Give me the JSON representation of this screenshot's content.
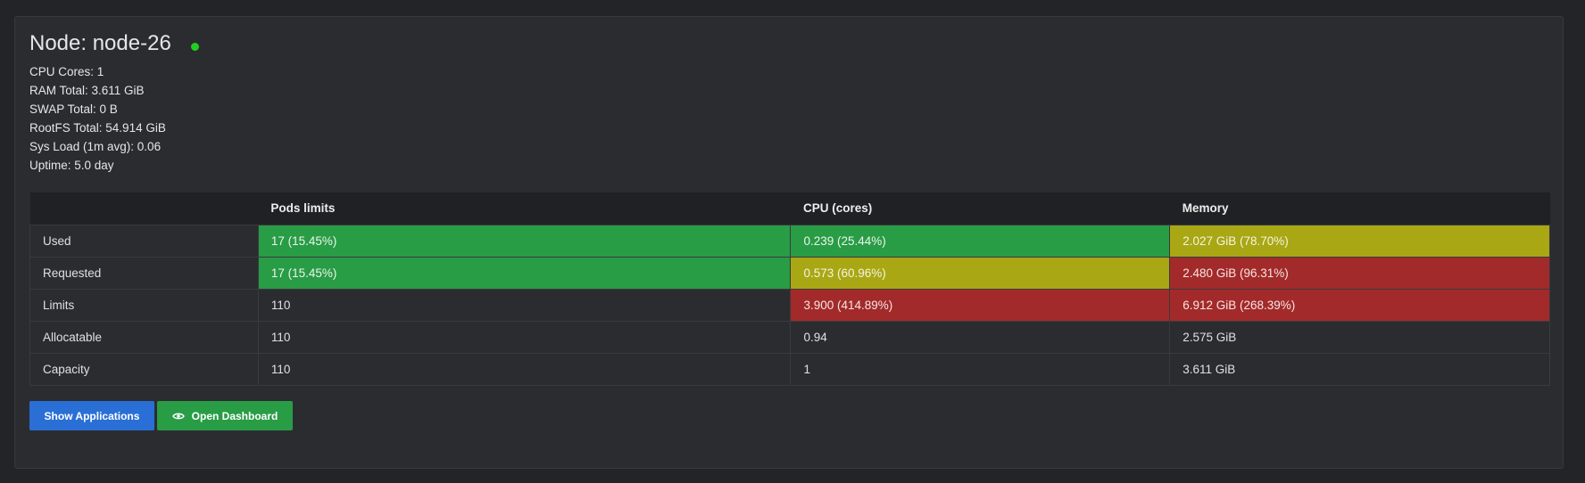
{
  "node": {
    "title": "Node: node-26",
    "status_color": "#1fd01f"
  },
  "info": [
    {
      "text": "CPU Cores: 1"
    },
    {
      "text": "RAM Total: 3.611 GiB"
    },
    {
      "text": "SWAP Total: 0 B"
    },
    {
      "text": "RootFS Total: 54.914 GiB"
    },
    {
      "text": "Sys Load (1m avg): 0.06"
    },
    {
      "text": "Uptime: 5.0 day"
    }
  ],
  "table": {
    "headers": [
      "",
      "Pods limits",
      "CPU (cores)",
      "Memory"
    ],
    "rows": [
      {
        "label": "Used",
        "cells": [
          {
            "value": "17 (15.45%)",
            "status": "green"
          },
          {
            "value": "0.239 (25.44%)",
            "status": "green"
          },
          {
            "value": "2.027 GiB (78.70%)",
            "status": "yellow"
          }
        ]
      },
      {
        "label": "Requested",
        "cells": [
          {
            "value": "17 (15.45%)",
            "status": "green"
          },
          {
            "value": "0.573 (60.96%)",
            "status": "yellow"
          },
          {
            "value": "2.480 GiB (96.31%)",
            "status": "red"
          }
        ]
      },
      {
        "label": "Limits",
        "cells": [
          {
            "value": "110",
            "status": ""
          },
          {
            "value": "3.900 (414.89%)",
            "status": "red"
          },
          {
            "value": "6.912 GiB (268.39%)",
            "status": "red"
          }
        ]
      },
      {
        "label": "Allocatable",
        "cells": [
          {
            "value": "110",
            "status": ""
          },
          {
            "value": "0.94",
            "status": ""
          },
          {
            "value": "2.575 GiB",
            "status": ""
          }
        ]
      },
      {
        "label": "Capacity",
        "cells": [
          {
            "value": "110",
            "status": ""
          },
          {
            "value": "1",
            "status": ""
          },
          {
            "value": "3.611 GiB",
            "status": ""
          }
        ]
      }
    ]
  },
  "buttons": {
    "show_applications": "Show Applications",
    "open_dashboard": "Open Dashboard",
    "open_dashboard_icon": "eye-icon"
  },
  "colors": {
    "green": "#299c46",
    "yellow": "#a9a714",
    "red": "#a32a2a",
    "blue": "#2a6fd6"
  }
}
